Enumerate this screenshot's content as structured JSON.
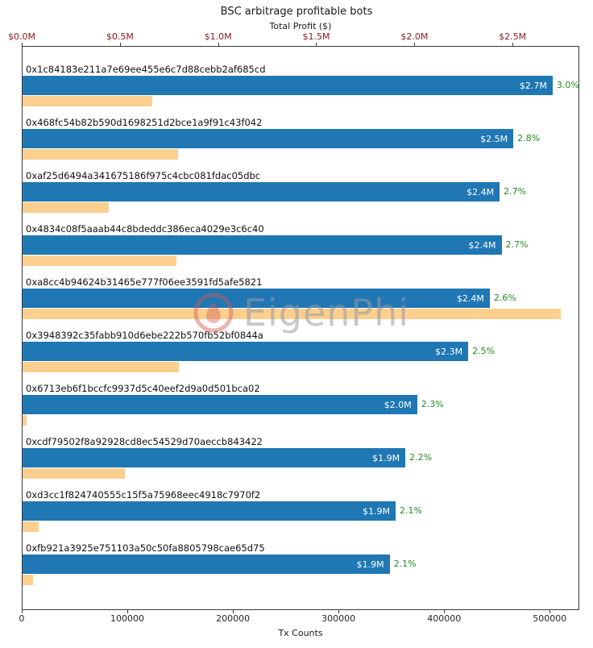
{
  "watermark": "EigenPhi",
  "colors": {
    "profit_bar": "#1f77b4",
    "tx_bar": "#fccf8f",
    "pct_text": "#228b22",
    "top_tick_text": "#8b1a1a",
    "bottom_tick_text": "#262626",
    "bar_value_text": "#ffffff"
  },
  "chart_data": {
    "type": "bar",
    "orientation": "horizontal",
    "title": "BSC arbitrage profitable bots",
    "top_axis": {
      "label": "Total Profit ($)",
      "ticks": [
        "$0.0M",
        "$0.5M",
        "$1.0M",
        "$1.5M",
        "$2.0M",
        "$2.5M"
      ],
      "tick_values": [
        0,
        0.5,
        1.0,
        1.5,
        2.0,
        2.5
      ],
      "axis_max": 2.84
    },
    "bottom_axis": {
      "label": "Tx Counts",
      "ticks": [
        "0",
        "100000",
        "200000",
        "300000",
        "400000",
        "500000"
      ],
      "tick_values": [
        0,
        100000,
        200000,
        300000,
        400000,
        500000
      ],
      "axis_max": 528000
    },
    "series": [
      {
        "name": "Total Profit ($)",
        "color": "#1f77b4"
      },
      {
        "name": "Tx Counts",
        "color": "#fccf8f"
      }
    ],
    "bots": [
      {
        "address": "0x1c84183e211a7e69ee455e6c7d88cebb2af685cd",
        "profit_label": "$2.7M",
        "profit_value": 2.7,
        "pct": "3.0%",
        "tx_counts": 123000
      },
      {
        "address": "0x468fc54b82b590d1698251d2bce1a9f91c43f042",
        "profit_label": "$2.5M",
        "profit_value": 2.5,
        "pct": "2.8%",
        "tx_counts": 147000
      },
      {
        "address": "0xaf25d6494a341675186f975c4cbc081fdac05dbc",
        "profit_label": "$2.4M",
        "profit_value": 2.43,
        "pct": "2.7%",
        "tx_counts": 82000
      },
      {
        "address": "0x4834c08f5aaab44c8bdeddc386eca4029e3c6c40",
        "profit_label": "$2.4M",
        "profit_value": 2.44,
        "pct": "2.7%",
        "tx_counts": 146000
      },
      {
        "address": "0xa8cc4b94624b31465e777f06ee3591fd5afe5821",
        "profit_label": "$2.4M",
        "profit_value": 2.38,
        "pct": "2.6%",
        "tx_counts": 510000
      },
      {
        "address": "0x3948392c35fabb910d6ebe222b570fb52bf0844a",
        "profit_label": "$2.3M",
        "profit_value": 2.27,
        "pct": "2.5%",
        "tx_counts": 148000
      },
      {
        "address": "0x6713eb6f1bccfc9937d5c40eef2d9a0d501bca02",
        "profit_label": "$2.0M",
        "profit_value": 2.01,
        "pct": "2.3%",
        "tx_counts": 4000
      },
      {
        "address": "0xcdf79502f8a92928cd8ec54529d70aeccb843422",
        "profit_label": "$1.9M",
        "profit_value": 1.95,
        "pct": "2.2%",
        "tx_counts": 97000
      },
      {
        "address": "0xd3cc1f824740555c15f5a75968eec4918c7970f2",
        "profit_label": "$1.9M",
        "profit_value": 1.9,
        "pct": "2.1%",
        "tx_counts": 15000
      },
      {
        "address": "0xfb921a3925e751103a50c50fa8805798cae65d75",
        "profit_label": "$1.9M",
        "profit_value": 1.87,
        "pct": "2.1%",
        "tx_counts": 10000
      }
    ]
  }
}
